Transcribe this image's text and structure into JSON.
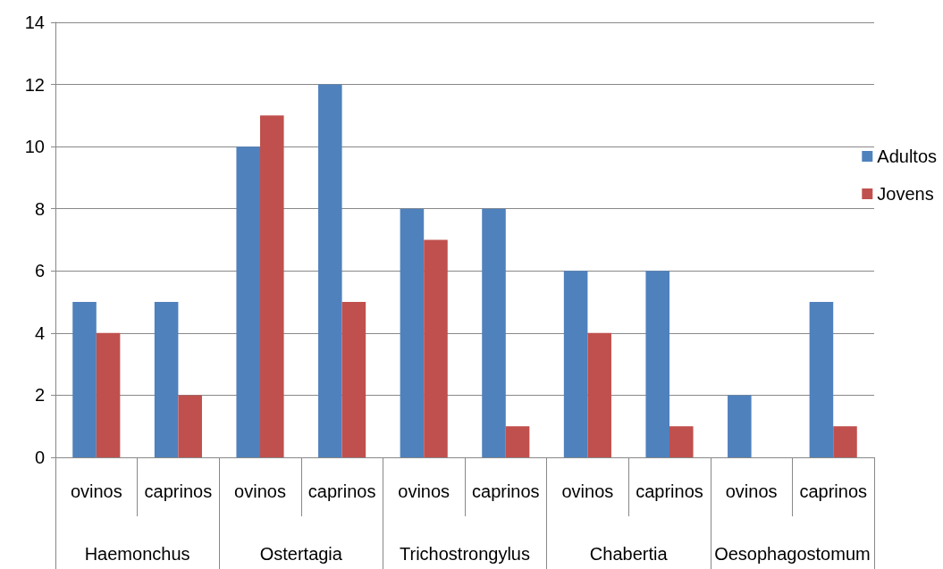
{
  "chart_data": {
    "type": "bar",
    "categories": [
      "ovinos",
      "caprinos",
      "ovinos",
      "caprinos",
      "ovinos",
      "caprinos",
      "ovinos",
      "caprinos",
      "ovinos",
      "caprinos"
    ],
    "annotations": [
      "Haemonchus",
      "Ostertagia",
      "Trichostrongylus",
      "Chabertia",
      "Oesophagostomum"
    ],
    "series": [
      {
        "name": "Adultos",
        "color": "#4f81bd",
        "values": [
          5,
          5,
          10,
          12,
          8,
          8,
          6,
          6,
          2,
          5
        ]
      },
      {
        "name": "Jovens",
        "color": "#c0504d",
        "values": [
          4,
          2,
          11,
          5,
          7,
          1,
          4,
          1,
          0,
          1
        ]
      }
    ],
    "ylim": [
      0,
      14
    ],
    "yticks": [
      0,
      2,
      4,
      6,
      8,
      10,
      12,
      14
    ],
    "grid": "y",
    "legend": "right"
  }
}
